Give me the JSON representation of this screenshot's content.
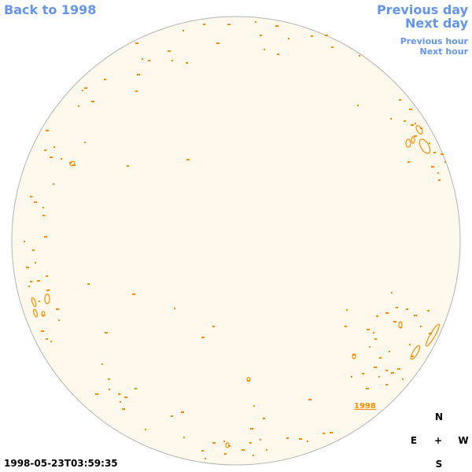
{
  "nav": {
    "back": "Back to 1998",
    "previous_day": "Previous day",
    "next_day": "Next day",
    "previous_hour": "Previous hour",
    "next_hour": "Next hour"
  },
  "compass": {
    "north": "N",
    "east": "E",
    "center": "+",
    "west": "W",
    "south": "S"
  },
  "timestamp": "1998-05-23T03:59:35",
  "year_label": "1998",
  "colors": {
    "disk_fill": "#fff8ec",
    "disk_stroke": "#b4b4b4",
    "contour": "#ff8c00",
    "link": "#6495ed"
  }
}
